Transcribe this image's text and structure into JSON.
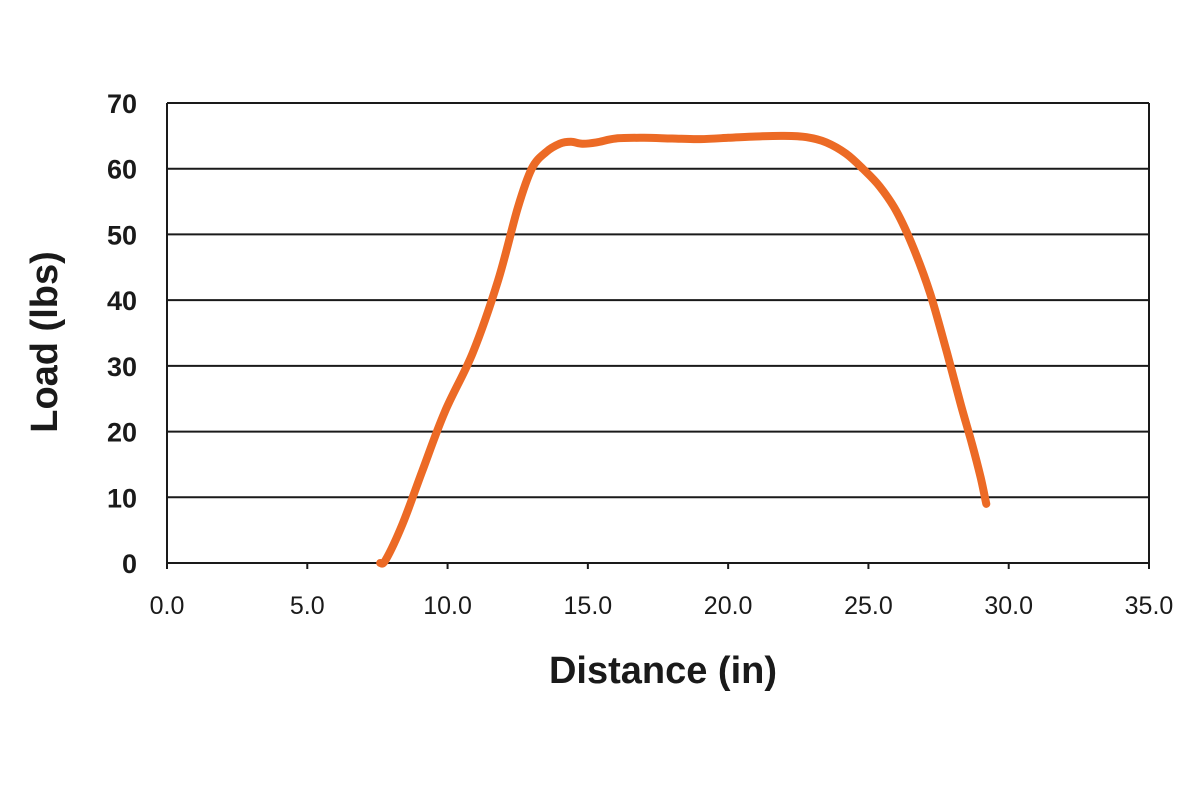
{
  "chart_data": {
    "type": "line",
    "xlabel": "Distance (in)",
    "ylabel": "Load (lbs)",
    "xlim": [
      0,
      35
    ],
    "ylim": [
      0,
      70
    ],
    "x_ticks": [
      "0.0",
      "5.0",
      "10.0",
      "15.0",
      "20.0",
      "25.0",
      "30.0",
      "35.0"
    ],
    "y_ticks": [
      "0",
      "10",
      "20",
      "30",
      "40",
      "50",
      "60",
      "70"
    ],
    "grid": "horizontal",
    "legend": "none",
    "series": [
      {
        "color": "#ec6a25",
        "x": [
          7.6,
          7.8,
          8.4,
          9.1,
          9.9,
          10.9,
          11.8,
          12.5,
          13.0,
          13.5,
          14.0,
          14.4,
          14.8,
          15.3,
          16.0,
          17.0,
          18.0,
          19.0,
          20.0,
          21.0,
          22.0,
          22.8,
          23.5,
          24.2,
          24.8,
          25.4,
          26.0,
          26.6,
          27.2,
          27.8,
          28.3,
          28.7,
          29.0,
          29.2
        ],
        "y": [
          0,
          0.5,
          6,
          14,
          23,
          32,
          43,
          54,
          60,
          62.5,
          63.8,
          64.1,
          63.8,
          64.0,
          64.6,
          64.7,
          64.6,
          64.5,
          64.7,
          64.9,
          65.0,
          64.8,
          64.0,
          62.3,
          60.0,
          57.3,
          53.5,
          48,
          41,
          32,
          24,
          18,
          13,
          9
        ]
      }
    ]
  }
}
